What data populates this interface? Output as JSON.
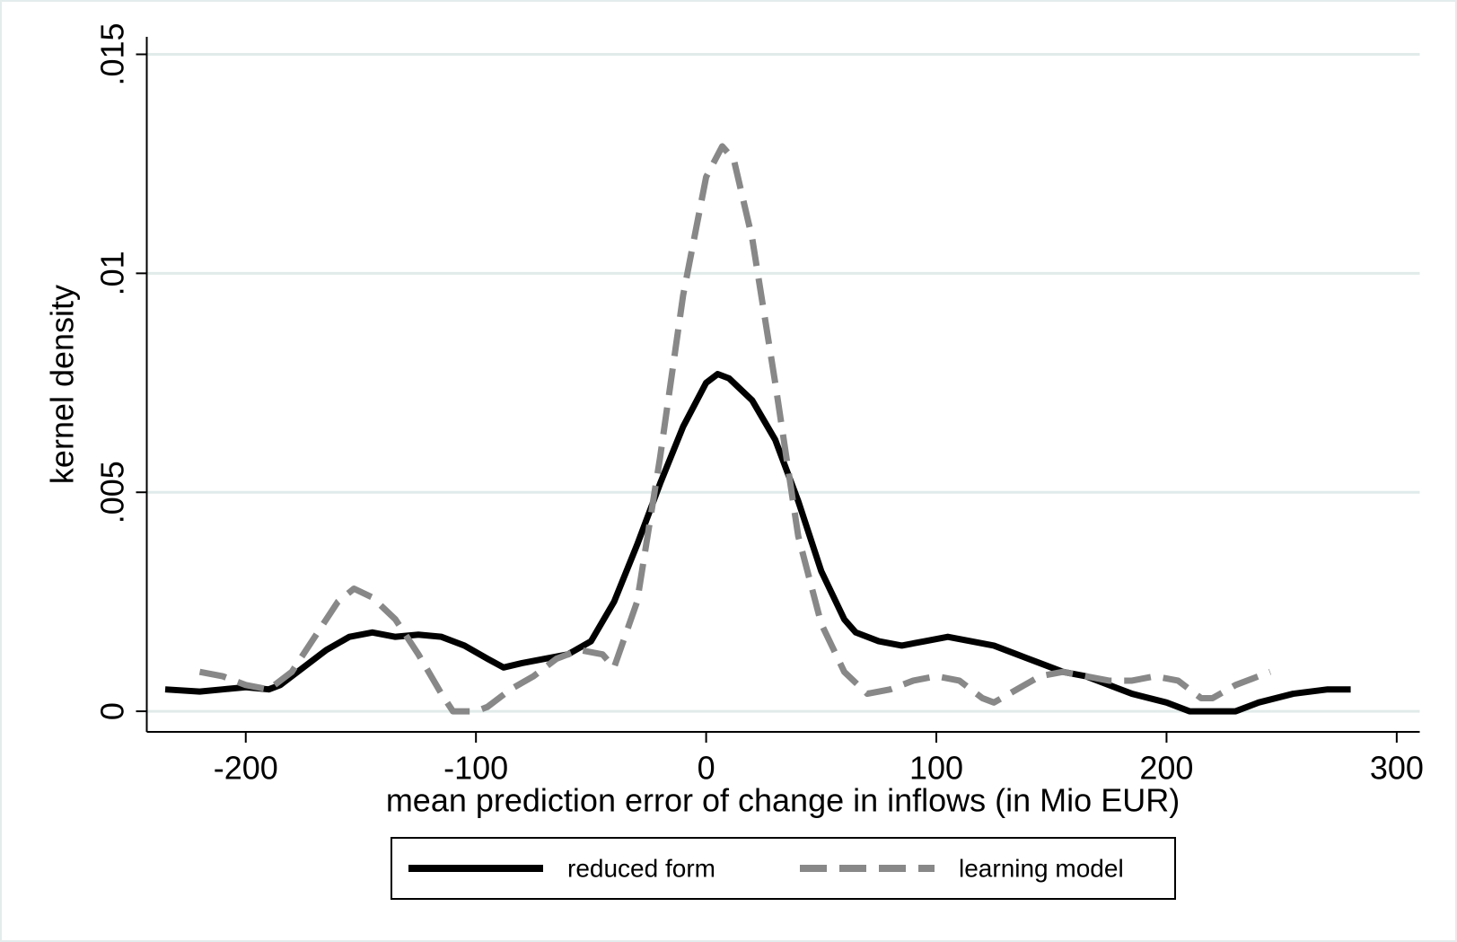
{
  "chart_data": {
    "type": "line",
    "x_label": "mean prediction error of change in inflows (in Mio EUR)",
    "y_label": "kernel density",
    "xlim": [
      -243,
      310
    ],
    "ylim": [
      -0.00047,
      0.0154
    ],
    "xticks": [
      -200,
      -100,
      0,
      100,
      200,
      300
    ],
    "yticks": [
      0,
      {
        "value": 0.005,
        "label": ".005"
      },
      {
        "value": 0.01,
        "label": ".01"
      },
      {
        "value": 0.015,
        "label": ".015"
      }
    ],
    "grid": true,
    "series": [
      {
        "name": "reduced form",
        "color": "#000000",
        "dash": false,
        "x": [
          -235,
          -220,
          -210,
          -200,
          -190,
          -185,
          -175,
          -165,
          -155,
          -145,
          -135,
          -125,
          -115,
          -105,
          -95,
          -88,
          -80,
          -70,
          -60,
          -50,
          -40,
          -30,
          -20,
          -10,
          0,
          5,
          10,
          20,
          30,
          40,
          50,
          60,
          65,
          75,
          85,
          95,
          105,
          115,
          125,
          135,
          145,
          155,
          165,
          175,
          185,
          200,
          210,
          220,
          230,
          240,
          255,
          270,
          280
        ],
        "values": [
          0.0005,
          0.00045,
          0.0005,
          0.00055,
          0.0005,
          0.0006,
          0.001,
          0.0014,
          0.0017,
          0.0018,
          0.0017,
          0.00175,
          0.0017,
          0.0015,
          0.0012,
          0.001,
          0.0011,
          0.0012,
          0.0013,
          0.0016,
          0.0025,
          0.0038,
          0.0052,
          0.0065,
          0.0075,
          0.0077,
          0.0076,
          0.0071,
          0.0062,
          0.0048,
          0.0032,
          0.0021,
          0.0018,
          0.0016,
          0.0015,
          0.0016,
          0.0017,
          0.0016,
          0.0015,
          0.0013,
          0.0011,
          0.0009,
          0.0008,
          0.0006,
          0.0004,
          0.0002,
          0,
          0,
          0,
          0.0002,
          0.0004,
          0.0005,
          0.0005
        ]
      },
      {
        "name": "learning model",
        "color": "#888888",
        "dash": true,
        "x": [
          -220,
          -210,
          -200,
          -190,
          -180,
          -170,
          -160,
          -153,
          -145,
          -135,
          -125,
          -115,
          -110,
          -100,
          -95,
          -85,
          -75,
          -65,
          -55,
          -45,
          -40,
          -30,
          -20,
          -10,
          0,
          7,
          12,
          20,
          30,
          40,
          50,
          60,
          70,
          80,
          90,
          100,
          110,
          120,
          125,
          135,
          145,
          155,
          165,
          175,
          185,
          195,
          205,
          215,
          220,
          230,
          245
        ],
        "values": [
          0.0009,
          0.0008,
          0.0006,
          0.0005,
          0.0009,
          0.0017,
          0.0025,
          0.0028,
          0.0026,
          0.0021,
          0.0013,
          0.0004,
          0,
          0,
          0.0001,
          0.0005,
          0.0008,
          0.0012,
          0.0014,
          0.0013,
          0.001,
          0.0025,
          0.0058,
          0.0095,
          0.0122,
          0.0129,
          0.0126,
          0.0108,
          0.0075,
          0.004,
          0.002,
          0.0009,
          0.0004,
          0.0005,
          0.0007,
          0.0008,
          0.0007,
          0.0003,
          0.0002,
          0.0005,
          0.0008,
          0.0009,
          0.0008,
          0.0007,
          0.0007,
          0.0008,
          0.0007,
          0.0003,
          0.0003,
          0.0006,
          0.0009
        ]
      }
    ]
  }
}
